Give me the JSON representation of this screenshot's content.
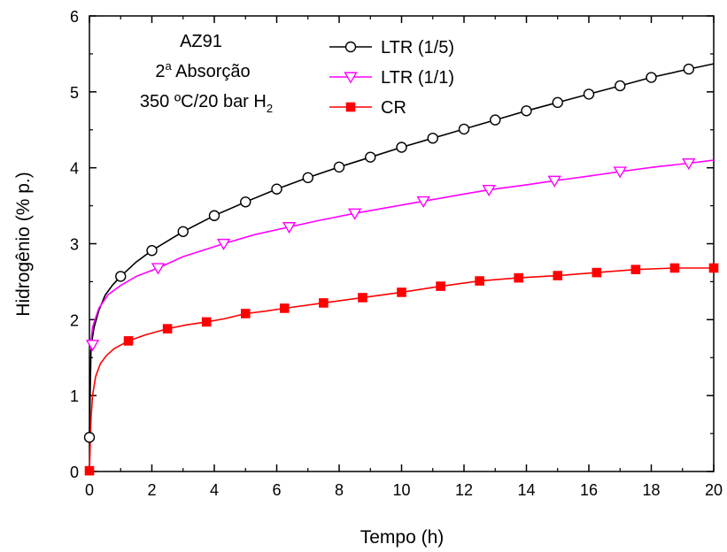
{
  "chart_data": {
    "type": "line",
    "xlabel": "Tempo (h)",
    "ylabel": "Hidrogênio (% p.)",
    "xlim": [
      0,
      20
    ],
    "ylim": [
      0,
      6
    ],
    "xticks": [
      0,
      2,
      4,
      6,
      8,
      10,
      12,
      14,
      16,
      18,
      20
    ],
    "yticks": [
      0,
      1,
      2,
      3,
      4,
      5,
      6
    ],
    "grid": false,
    "legend_position": "top-right",
    "annotations": {
      "line1": "AZ91",
      "line2_main": "2",
      "line2_sup": "a",
      "line2_rest": " Absorção",
      "line3_main": "350 ºC/20 bar H",
      "line3_sub": "2"
    },
    "series": [
      {
        "name": "LTR (1/5)",
        "color": "#000000",
        "marker": "circle-open",
        "markers": [
          [
            0,
            0.45
          ],
          [
            1,
            2.57
          ],
          [
            2,
            2.91
          ],
          [
            3,
            3.16
          ],
          [
            4,
            3.37
          ],
          [
            5,
            3.55
          ],
          [
            6,
            3.72
          ],
          [
            7,
            3.87
          ],
          [
            8,
            4.01
          ],
          [
            9,
            4.14
          ],
          [
            10,
            4.27
          ],
          [
            11,
            4.39
          ],
          [
            12,
            4.51
          ],
          [
            13,
            4.63
          ],
          [
            14,
            4.75
          ],
          [
            15,
            4.86
          ],
          [
            16,
            4.97
          ],
          [
            17,
            5.08
          ],
          [
            18,
            5.19
          ],
          [
            19.2,
            5.3
          ]
        ],
        "curve": [
          [
            0,
            0.45
          ],
          [
            0.05,
            1.65
          ],
          [
            0.15,
            1.9
          ],
          [
            0.3,
            2.12
          ],
          [
            0.5,
            2.32
          ],
          [
            0.75,
            2.46
          ],
          [
            1,
            2.57
          ],
          [
            1.5,
            2.76
          ],
          [
            2,
            2.91
          ],
          [
            3,
            3.16
          ],
          [
            4,
            3.37
          ],
          [
            5,
            3.55
          ],
          [
            6,
            3.72
          ],
          [
            7,
            3.87
          ],
          [
            8,
            4.01
          ],
          [
            9,
            4.14
          ],
          [
            10,
            4.27
          ],
          [
            11,
            4.39
          ],
          [
            12,
            4.51
          ],
          [
            13,
            4.63
          ],
          [
            14,
            4.75
          ],
          [
            15,
            4.86
          ],
          [
            16,
            4.97
          ],
          [
            17,
            5.08
          ],
          [
            18,
            5.19
          ],
          [
            19.2,
            5.3
          ],
          [
            20,
            5.37
          ]
        ]
      },
      {
        "name": "LTR (1/1)",
        "color": "#ff00ff",
        "marker": "triangle-down-open",
        "markers": [
          [
            0.1,
            1.67
          ],
          [
            2.2,
            2.68
          ],
          [
            4.3,
            3.0
          ],
          [
            6.4,
            3.22
          ],
          [
            8.5,
            3.4
          ],
          [
            10.7,
            3.56
          ],
          [
            12.8,
            3.71
          ],
          [
            14.9,
            3.83
          ],
          [
            17,
            3.95
          ],
          [
            19.2,
            4.06
          ]
        ],
        "curve": [
          [
            0.02,
            1.6
          ],
          [
            0.1,
            1.9
          ],
          [
            0.3,
            2.15
          ],
          [
            0.6,
            2.33
          ],
          [
            1,
            2.45
          ],
          [
            1.5,
            2.57
          ],
          [
            2.2,
            2.68
          ],
          [
            3,
            2.83
          ],
          [
            4.3,
            3.0
          ],
          [
            5.3,
            3.12
          ],
          [
            6.4,
            3.22
          ],
          [
            7.4,
            3.31
          ],
          [
            8.5,
            3.4
          ],
          [
            9.6,
            3.48
          ],
          [
            10.7,
            3.56
          ],
          [
            11.8,
            3.64
          ],
          [
            12.8,
            3.71
          ],
          [
            13.9,
            3.77
          ],
          [
            14.9,
            3.83
          ],
          [
            16,
            3.89
          ],
          [
            17,
            3.95
          ],
          [
            18.1,
            4.01
          ],
          [
            19.2,
            4.06
          ],
          [
            20,
            4.1
          ]
        ]
      },
      {
        "name": "CR",
        "color": "#ff0000",
        "marker": "square-filled",
        "markers": [
          [
            0,
            0.01
          ],
          [
            1.25,
            1.72
          ],
          [
            2.5,
            1.88
          ],
          [
            3.75,
            1.97
          ],
          [
            5,
            2.08
          ],
          [
            6.25,
            2.15
          ],
          [
            7.5,
            2.22
          ],
          [
            8.75,
            2.29
          ],
          [
            10,
            2.36
          ],
          [
            11.25,
            2.44
          ],
          [
            12.5,
            2.51
          ],
          [
            13.75,
            2.55
          ],
          [
            15,
            2.58
          ],
          [
            16.25,
            2.62
          ],
          [
            17.5,
            2.66
          ],
          [
            18.75,
            2.68
          ],
          [
            20,
            2.68
          ]
        ],
        "curve": [
          [
            0,
            0.01
          ],
          [
            0.05,
            0.7
          ],
          [
            0.1,
            1.0
          ],
          [
            0.2,
            1.25
          ],
          [
            0.35,
            1.42
          ],
          [
            0.55,
            1.53
          ],
          [
            0.8,
            1.62
          ],
          [
            1.25,
            1.72
          ],
          [
            1.8,
            1.8
          ],
          [
            2.5,
            1.88
          ],
          [
            3.1,
            1.93
          ],
          [
            3.75,
            1.97
          ],
          [
            4.3,
            2.01
          ],
          [
            5,
            2.08
          ],
          [
            5.6,
            2.11
          ],
          [
            6.25,
            2.15
          ],
          [
            7.5,
            2.22
          ],
          [
            8.75,
            2.29
          ],
          [
            10,
            2.36
          ],
          [
            11.25,
            2.44
          ],
          [
            12.5,
            2.51
          ],
          [
            13.75,
            2.55
          ],
          [
            15,
            2.58
          ],
          [
            16.25,
            2.62
          ],
          [
            17.5,
            2.66
          ],
          [
            18.75,
            2.68
          ],
          [
            20,
            2.68
          ]
        ]
      }
    ]
  }
}
